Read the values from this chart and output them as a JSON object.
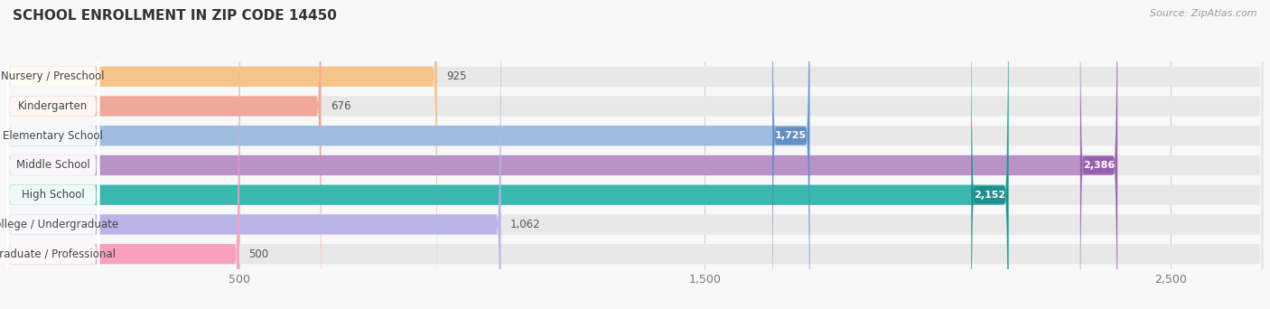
{
  "title": "SCHOOL ENROLLMENT IN ZIP CODE 14450",
  "source": "Source: ZipAtlas.com",
  "categories": [
    "Nursery / Preschool",
    "Kindergarten",
    "Elementary School",
    "Middle School",
    "High School",
    "College / Undergraduate",
    "Graduate / Professional"
  ],
  "values": [
    925,
    676,
    1725,
    2386,
    2152,
    1062,
    500
  ],
  "bar_colors": [
    "#f5c48a",
    "#f0a898",
    "#9dbce0",
    "#b992c8",
    "#3ab8b0",
    "#b8b4e8",
    "#f8a0bc"
  ],
  "label_colors": [
    "#c8914a",
    "#d06858",
    "#5a88c0",
    "#9058a8",
    "#1a8888",
    "#8078c8",
    "#e86898"
  ],
  "xlim_max": 2700,
  "xticks": [
    500,
    1500,
    2500
  ],
  "label_inside_threshold": 1400,
  "background_color": "#f8f8f8",
  "bar_bg_color": "#e8e8e8",
  "title_fontsize": 11,
  "source_fontsize": 8,
  "bar_height": 0.68,
  "figsize": [
    14.06,
    3.42
  ],
  "dpi": 100
}
